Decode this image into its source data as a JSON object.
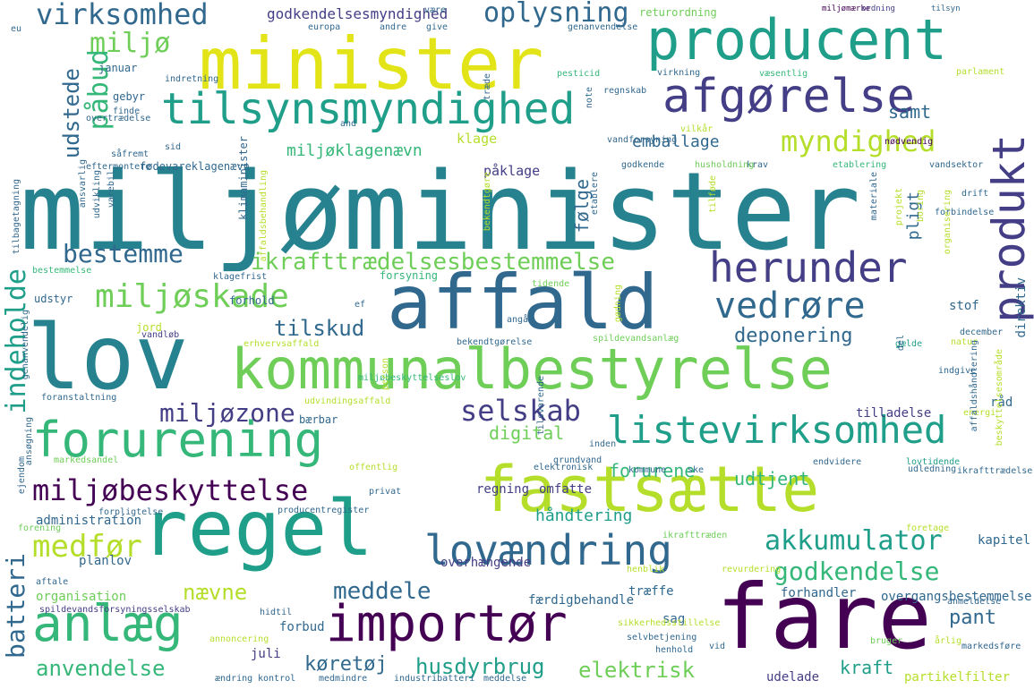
{
  "palette": {
    "dark_purple": "#440154",
    "indigo": "#433e85",
    "blue": "#31688e",
    "teal_blue": "#26828e",
    "teal": "#1f9e89",
    "green": "#35b779",
    "lime": "#6ece58",
    "yellow_green": "#b5de2b",
    "yellow": "#fde725"
  },
  "words": [
    {
      "text": "miljøminister",
      "color": "#26828e"
    },
    {
      "text": "minister",
      "color": "#e2e418"
    },
    {
      "text": "producent",
      "color": "#1f9e89"
    },
    {
      "text": "afgørelse",
      "color": "#433e85"
    },
    {
      "text": "tilsynsmyndighed",
      "color": "#1f9e89"
    },
    {
      "text": "virksomhed",
      "color": "#31688e"
    },
    {
      "text": "oplysning",
      "color": "#31688e"
    },
    {
      "text": "miljø",
      "color": "#6ece58"
    },
    {
      "text": "udstede",
      "color": "#31688e"
    },
    {
      "text": "påbud",
      "color": "#35b779"
    },
    {
      "text": "myndighed",
      "color": "#b5de2b"
    },
    {
      "text": "produkt",
      "color": "#433e85"
    },
    {
      "text": "herunder",
      "color": "#433e85"
    },
    {
      "text": "affald",
      "color": "#31688e"
    },
    {
      "text": "lov",
      "color": "#26828e"
    },
    {
      "text": "kommunalbestyrelse",
      "color": "#6ece58"
    },
    {
      "text": "miljøskade",
      "color": "#6ece58"
    },
    {
      "text": "vedrøre",
      "color": "#31688e"
    },
    {
      "text": "bestemme",
      "color": "#31688e"
    },
    {
      "text": "ikrafttrædelsesbestemmelse",
      "color": "#6ece58"
    },
    {
      "text": "indeholde",
      "color": "#1f9e89"
    },
    {
      "text": "forurening",
      "color": "#35b779"
    },
    {
      "text": "listevirksomhed",
      "color": "#1f9e89"
    },
    {
      "text": "selskab",
      "color": "#433e85"
    },
    {
      "text": "miljøzone",
      "color": "#433e85"
    },
    {
      "text": "tilskud",
      "color": "#31688e"
    },
    {
      "text": "deponering",
      "color": "#31688e"
    },
    {
      "text": "fastsætte",
      "color": "#b5de2b"
    },
    {
      "text": "miljøbeskyttelse",
      "color": "#440154"
    },
    {
      "text": "regel",
      "color": "#1f9e89"
    },
    {
      "text": "lovændring",
      "color": "#31688e"
    },
    {
      "text": "akkumulator",
      "color": "#1f9e89"
    },
    {
      "text": "godkendelse",
      "color": "#35b779"
    },
    {
      "text": "medfør",
      "color": "#b5de2b"
    },
    {
      "text": "anlæg",
      "color": "#35b779"
    },
    {
      "text": "importør",
      "color": "#440154"
    },
    {
      "text": "fare",
      "color": "#440154"
    },
    {
      "text": "meddele",
      "color": "#31688e"
    },
    {
      "text": "nævne",
      "color": "#b5de2b"
    },
    {
      "text": "batteri",
      "color": "#31688e"
    },
    {
      "text": "anvendelse",
      "color": "#35b779"
    },
    {
      "text": "husdyrbrug",
      "color": "#1f9e89"
    },
    {
      "text": "elektrisk",
      "color": "#6ece58"
    },
    {
      "text": "køretøj",
      "color": "#31688e"
    },
    {
      "text": "pant",
      "color": "#31688e"
    },
    {
      "text": "kraft",
      "color": "#1f9e89"
    },
    {
      "text": "emballage",
      "color": "#31688e"
    },
    {
      "text": "miljøklagenævn",
      "color": "#35b779"
    },
    {
      "text": "forurene",
      "color": "#35b779"
    },
    {
      "text": "udtjent",
      "color": "#35b779"
    },
    {
      "text": "digital",
      "color": "#6ece58"
    },
    {
      "text": "samt",
      "color": "#31688e"
    },
    {
      "text": "godkendelsesmyndighed",
      "color": "#433e85"
    },
    {
      "text": "returordning",
      "color": "#6ece58"
    },
    {
      "text": "tilsyn",
      "color": "#31688e"
    },
    {
      "text": "miljømærke",
      "color": "#440154"
    },
    {
      "text": "ordning",
      "color": "#433e85"
    },
    {
      "text": "klage",
      "color": "#b5de2b"
    },
    {
      "text": "påklage",
      "color": "#433e85"
    },
    {
      "text": "følge",
      "color": "#31688e"
    },
    {
      "text": "pligt",
      "color": "#31688e"
    },
    {
      "text": "direktiv",
      "color": "#31688e"
    },
    {
      "text": "stof",
      "color": "#31688e"
    },
    {
      "text": "regning",
      "color": "#433e85"
    },
    {
      "text": "tilladelse",
      "color": "#433e85"
    },
    {
      "text": "råd",
      "color": "#31688e"
    },
    {
      "text": "håndtering",
      "color": "#1f9e89"
    },
    {
      "text": "overhængende",
      "color": "#433e85"
    },
    {
      "text": "omfatte",
      "color": "#433e85"
    },
    {
      "text": "kapitel",
      "color": "#31688e"
    },
    {
      "text": "færdigbehandle",
      "color": "#31688e"
    },
    {
      "text": "træffe",
      "color": "#31688e"
    },
    {
      "text": "forhandler",
      "color": "#31688e"
    },
    {
      "text": "overgangsbestemmelse",
      "color": "#31688e"
    },
    {
      "text": "sag",
      "color": "#31688e"
    },
    {
      "text": "administration",
      "color": "#31688e"
    },
    {
      "text": "planlov",
      "color": "#31688e"
    },
    {
      "text": "organisation",
      "color": "#6ece58"
    },
    {
      "text": "forbud",
      "color": "#31688e"
    },
    {
      "text": "juli",
      "color": "#433e85"
    },
    {
      "text": "udelade",
      "color": "#433e85"
    },
    {
      "text": "partikelfilter",
      "color": "#b5de2b"
    },
    {
      "text": "gebyr",
      "color": "#31688e"
    },
    {
      "text": "januar",
      "color": "#31688e"
    },
    {
      "text": "fødevareklagenævn",
      "color": "#31688e"
    },
    {
      "text": "klimaminister",
      "color": "#31688e"
    },
    {
      "text": "forsyning",
      "color": "#35b779"
    },
    {
      "text": "jord",
      "color": "#b5de2b"
    },
    {
      "text": "forhold",
      "color": "#31688e"
    },
    {
      "text": "udstyr",
      "color": "#31688e"
    },
    {
      "text": "bestemmelse",
      "color": "#35b779"
    },
    {
      "text": "vandløb",
      "color": "#433e85"
    },
    {
      "text": "erhvervsaffald",
      "color": "#b5de2b"
    },
    {
      "text": "bekendtgørelse",
      "color": "#31688e"
    },
    {
      "text": "spildevandsanlæg",
      "color": "#6ece58"
    },
    {
      "text": "gælde",
      "color": "#1f9e89"
    },
    {
      "text": "miljøbeskyttelseslov",
      "color": "#35b779"
    },
    {
      "text": "bærbar",
      "color": "#31688e"
    },
    {
      "text": "udvindingsaffald",
      "color": "#b5de2b"
    },
    {
      "text": "inden",
      "color": "#31688e"
    },
    {
      "text": "grundvand",
      "color": "#31688e"
    },
    {
      "text": "elektronisk",
      "color": "#31688e"
    },
    {
      "text": "kommune",
      "color": "#31688e"
    },
    {
      "text": "ske",
      "color": "#31688e"
    },
    {
      "text": "udledning",
      "color": "#31688e"
    },
    {
      "text": "ikrafttrædelse",
      "color": "#31688e"
    },
    {
      "text": "lovtidende",
      "color": "#1f9e89"
    },
    {
      "text": "endvidere",
      "color": "#31688e"
    },
    {
      "text": "offentlig",
      "color": "#b5de2b"
    },
    {
      "text": "privat",
      "color": "#31688e"
    },
    {
      "text": "producentregister",
      "color": "#31688e"
    },
    {
      "text": "forpligtelse",
      "color": "#31688e"
    },
    {
      "text": "forening",
      "color": "#6ece58"
    },
    {
      "text": "ikrafttræden",
      "color": "#6ece58"
    },
    {
      "text": "foretage",
      "color": "#b5de2b"
    },
    {
      "text": "henblik",
      "color": "#b5de2b"
    },
    {
      "text": "revurdering",
      "color": "#b5de2b"
    },
    {
      "text": "anmeldelse",
      "color": "#31688e"
    },
    {
      "text": "spildevandsforsyningsselskab",
      "color": "#433e85"
    },
    {
      "text": "sikkerhedsstillelse",
      "color": "#b5de2b"
    },
    {
      "text": "selvbetjening",
      "color": "#31688e"
    },
    {
      "text": "hidtil",
      "color": "#31688e"
    },
    {
      "text": "aftale",
      "color": "#31688e"
    },
    {
      "text": "annoncering",
      "color": "#b5de2b"
    },
    {
      "text": "henhold",
      "color": "#31688e"
    },
    {
      "text": "vid",
      "color": "#31688e"
    },
    {
      "text": "bruger",
      "color": "#6ece58"
    },
    {
      "text": "årlig",
      "color": "#b5de2b"
    },
    {
      "text": "markedsføre",
      "color": "#31688e"
    },
    {
      "text": "ændring",
      "color": "#31688e"
    },
    {
      "text": "kontrol",
      "color": "#31688e"
    },
    {
      "text": "medmindre",
      "color": "#31688e"
    },
    {
      "text": "industribatteri",
      "color": "#31688e"
    },
    {
      "text": "meddelse",
      "color": "#31688e"
    },
    {
      "text": "europa",
      "color": "#31688e"
    },
    {
      "text": "andre",
      "color": "#31688e"
    },
    {
      "text": "give",
      "color": "#31688e"
    },
    {
      "text": "være",
      "color": "#31688e"
    },
    {
      "text": "genanvendelse",
      "color": "#31688e"
    },
    {
      "text": "parlament",
      "color": "#b5de2b"
    },
    {
      "text": "væsentlig",
      "color": "#35b779"
    },
    {
      "text": "virkning",
      "color": "#31688e"
    },
    {
      "text": "pesticid",
      "color": "#35b779"
    },
    {
      "text": "note",
      "color": "#31688e"
    },
    {
      "text": "regnskab",
      "color": "#31688e"
    },
    {
      "text": "vilkår",
      "color": "#b5de2b"
    },
    {
      "text": "indretning",
      "color": "#31688e"
    },
    {
      "text": "finde",
      "color": "#31688e"
    },
    {
      "text": "overtrædelse",
      "color": "#31688e"
    },
    {
      "text": "sid",
      "color": "#31688e"
    },
    {
      "text": "såfremt",
      "color": "#31688e"
    },
    {
      "text": "eftermontere",
      "color": "#31688e"
    },
    {
      "text": "vandforsyning",
      "color": "#31688e"
    },
    {
      "text": "nødvendig",
      "color": "#440154"
    },
    {
      "text": "godkende",
      "color": "#31688e"
    },
    {
      "text": "krav",
      "color": "#31688e"
    },
    {
      "text": "husholdning",
      "color": "#6ece58"
    },
    {
      "text": "etablering",
      "color": "#35b779"
    },
    {
      "text": "vandsektor",
      "color": "#31688e"
    },
    {
      "text": "drift",
      "color": "#31688e"
    },
    {
      "text": "forbindelse",
      "color": "#31688e"
    },
    {
      "text": "ef",
      "color": "#31688e"
    },
    {
      "text": "tidende",
      "color": "#6ece58"
    },
    {
      "text": "klagefrist",
      "color": "#31688e"
    },
    {
      "text": "angå",
      "color": "#31688e"
    },
    {
      "text": "natur",
      "color": "#b5de2b"
    },
    {
      "text": "december",
      "color": "#31688e"
    },
    {
      "text": "indgive",
      "color": "#31688e"
    },
    {
      "text": "del",
      "color": "#31688e"
    },
    {
      "text": "energi",
      "color": "#b5de2b"
    },
    {
      "text": "ejendom",
      "color": "#31688e"
    },
    {
      "text": "markedsandel",
      "color": "#6ece58"
    },
    {
      "text": "foranstaltning",
      "color": "#31688e"
    },
    {
      "text": "ansøgning",
      "color": "#31688e"
    },
    {
      "text": "tilbagetagning",
      "color": "#31688e"
    },
    {
      "text": "ansvarlig",
      "color": "#31688e"
    },
    {
      "text": "udvikling",
      "color": "#31688e"
    },
    {
      "text": "varebil",
      "color": "#31688e"
    },
    {
      "text": "affaldsbehandling",
      "color": "#b5de2b"
    },
    {
      "text": "bekendtgøre",
      "color": "#b5de2b"
    },
    {
      "text": "etablere",
      "color": "#31688e"
    },
    {
      "text": "tilføde",
      "color": "#b5de2b"
    },
    {
      "text": "materiale",
      "color": "#31688e"
    },
    {
      "text": "projekt",
      "color": "#b5de2b"
    },
    {
      "text": "boring",
      "color": "#b5de2b"
    },
    {
      "text": "organisering",
      "color": "#b5de2b"
    },
    {
      "text": "affaldshåndtering",
      "color": "#31688e"
    },
    {
      "text": "beskyttelsesområde",
      "color": "#b5de2b"
    },
    {
      "text": "genanvendelig",
      "color": "#31688e"
    },
    {
      "text": "person",
      "color": "#b5de2b"
    },
    {
      "text": "gødning",
      "color": "#b5de2b"
    },
    {
      "text": "tilsvarende",
      "color": "#31688e"
    },
    {
      "text": "træde",
      "color": "#31688e"
    },
    {
      "text": "and",
      "color": "#31688e"
    },
    {
      "text": "eu",
      "color": "#31688e"
    }
  ]
}
